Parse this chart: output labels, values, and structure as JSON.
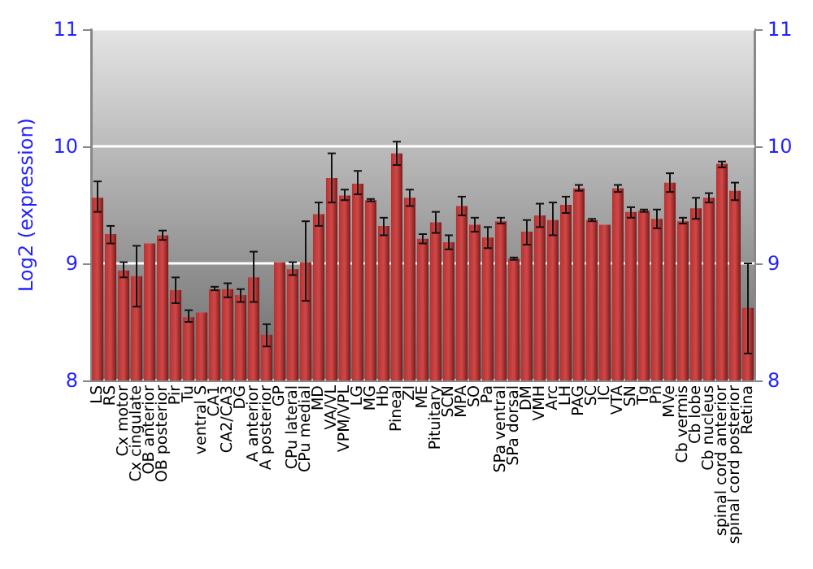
{
  "chart_data": {
    "type": "bar",
    "ylabel": "Log2 (expression)",
    "categories": [
      "LS",
      "RS",
      "Cx motor",
      "Cx cingulate",
      "OB anterior",
      "OB posterior",
      "Pir",
      "Tu",
      "ventral S",
      "CA1",
      "CA2/CA3",
      "DG",
      "A anterior",
      "A posterior",
      "GP",
      "CPu lateral",
      "CPu medial",
      "MD",
      "VA/VL",
      "VPM/VPL",
      "LG",
      "MG",
      "Hb",
      "Pineal",
      "ZI",
      "ME",
      "Pituitary",
      "SCN",
      "MPA",
      "SO",
      "Pa",
      "SPa ventral",
      "SPa dorsal",
      "DM",
      "VMH",
      "Arc",
      "LH",
      "PAG",
      "SC",
      "IC",
      "VTA",
      "SN",
      "Tg",
      "Pn",
      "MVe",
      "Cb vermis",
      "Cb lobe",
      "Cb nucleus",
      "spinal cord anterior",
      "spinal cord posterior",
      "Retina"
    ],
    "series": [
      {
        "color": "#b83232",
        "values": [
          9.56,
          9.25,
          8.94,
          8.89,
          9.17,
          9.24,
          8.77,
          8.54,
          8.58,
          8.78,
          8.78,
          8.73,
          8.88,
          8.39,
          9.01,
          8.95,
          9.01,
          9.42,
          9.73,
          9.58,
          9.68,
          9.54,
          9.32,
          9.94,
          9.56,
          9.21,
          9.35,
          9.18,
          9.49,
          9.33,
          9.22,
          9.36,
          9.04,
          9.27,
          9.41,
          9.37,
          9.5,
          9.64,
          9.37,
          9.33,
          9.64,
          9.44,
          9.45,
          9.38,
          9.69,
          9.36,
          9.47,
          9.56,
          9.85,
          9.62,
          8.62
        ],
        "errors": [
          [
            9.44,
            9.7
          ],
          [
            9.17,
            9.32
          ],
          [
            8.88,
            9.01
          ],
          [
            8.63,
            9.15
          ],
          null,
          [
            9.2,
            9.28
          ],
          [
            8.66,
            8.88
          ],
          [
            8.5,
            8.6
          ],
          null,
          [
            8.77,
            8.8
          ],
          [
            8.71,
            8.83
          ],
          [
            8.67,
            8.78
          ],
          [
            8.67,
            9.1
          ],
          [
            8.29,
            8.48
          ],
          null,
          [
            8.9,
            9.01
          ],
          [
            8.68,
            9.36
          ],
          [
            9.32,
            9.52
          ],
          [
            9.52,
            9.94
          ],
          [
            9.54,
            9.63
          ],
          [
            9.59,
            9.79
          ],
          [
            9.53,
            9.55
          ],
          [
            9.24,
            9.39
          ],
          [
            9.84,
            10.04
          ],
          [
            9.49,
            9.63
          ],
          [
            9.17,
            9.25
          ],
          [
            9.26,
            9.44
          ],
          [
            9.12,
            9.24
          ],
          [
            9.41,
            9.57
          ],
          [
            9.27,
            9.39
          ],
          [
            9.13,
            9.31
          ],
          [
            9.34,
            9.39
          ],
          [
            9.03,
            9.05
          ],
          [
            9.16,
            9.37
          ],
          [
            9.31,
            9.51
          ],
          [
            9.24,
            9.52
          ],
          [
            9.43,
            9.57
          ],
          [
            9.62,
            9.67
          ],
          [
            9.36,
            9.38
          ],
          null,
          [
            9.61,
            9.67
          ],
          [
            9.39,
            9.48
          ],
          [
            9.44,
            9.46
          ],
          [
            9.3,
            9.46
          ],
          [
            9.61,
            9.77
          ],
          [
            9.34,
            9.39
          ],
          [
            9.38,
            9.56
          ],
          [
            9.52,
            9.6
          ],
          [
            9.82,
            9.87
          ],
          [
            9.54,
            9.69
          ],
          [
            8.23,
            9.0
          ]
        ]
      }
    ],
    "ylim": [
      8,
      11
    ],
    "yticks": [
      8,
      9,
      10,
      11
    ],
    "y2lim": [
      8,
      11
    ],
    "y2ticks": [
      8,
      9,
      10,
      11
    ],
    "grid": "y"
  }
}
